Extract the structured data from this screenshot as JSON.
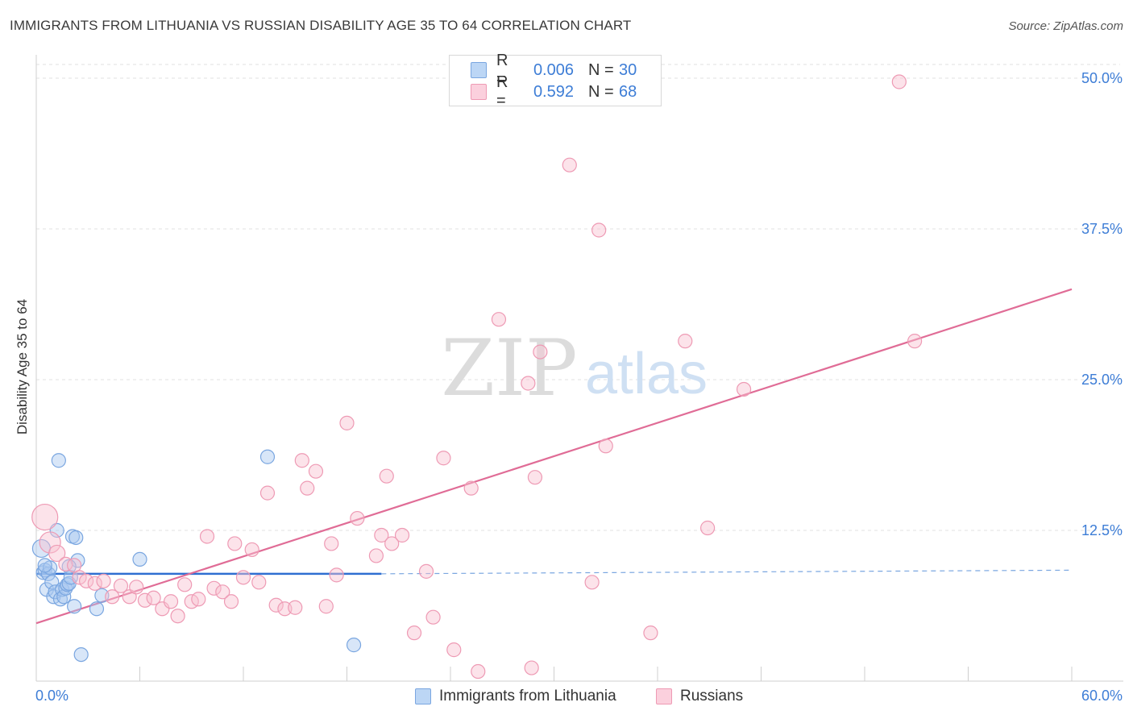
{
  "title": "IMMIGRANTS FROM LITHUANIA VS RUSSIAN DISABILITY AGE 35 TO 64 CORRELATION CHART",
  "source": "Source: ZipAtlas.com",
  "watermark": {
    "zip": "ZIP",
    "atlas": "atlas"
  },
  "legend": {
    "rows": [
      {
        "r_label": "R =",
        "r_value": "0.006",
        "n_label": "N =",
        "n_value": "30",
        "color": "#a8c8f0",
        "border": "#7aa6e0"
      },
      {
        "r_label": "R =",
        "r_value": "0.592",
        "n_label": "N =",
        "n_value": "68",
        "color": "#f8c0d0",
        "border": "#ee9ab4"
      }
    ]
  },
  "bottom_legend": [
    "Immigrants from Lithuania",
    "Russians"
  ],
  "chart_data": {
    "type": "scatter",
    "title": "IMMIGRANTS FROM LITHUANIA VS RUSSIAN DISABILITY AGE 35 TO 64 CORRELATION CHART",
    "xlabel": "",
    "ylabel": "Disability Age 35 to 64",
    "xlim": [
      0,
      60
    ],
    "ylim": [
      0,
      50
    ],
    "x_tick_labels": [
      "0.0%",
      "60.0%"
    ],
    "y_ticks": [
      12.5,
      25.0,
      37.5,
      50.0
    ],
    "y_tick_labels": [
      "12.5%",
      "25.0%",
      "37.5%",
      "50.0%"
    ],
    "grid": true,
    "legend_position": "top-center",
    "series": [
      {
        "name": "Immigrants from Lithuania",
        "color": "#7aa6e0",
        "fill": "rgba(168,200,240,0.45)",
        "line_color": "#2f6fd1",
        "trend": {
          "x0": 0,
          "y0": 8.9,
          "x1": 20,
          "y1": 8.9,
          "dashed_to": 60,
          "dashed_y": 9.2
        },
        "points": [
          [
            0.3,
            11.0
          ],
          [
            0.4,
            9.0
          ],
          [
            0.5,
            9.2
          ],
          [
            0.6,
            7.6
          ],
          [
            0.7,
            8.9
          ],
          [
            0.8,
            9.4
          ],
          [
            0.9,
            8.2
          ],
          [
            1.0,
            7.0
          ],
          [
            1.1,
            7.4
          ],
          [
            1.2,
            12.5
          ],
          [
            1.3,
            18.3
          ],
          [
            1.4,
            6.8
          ],
          [
            1.5,
            7.6
          ],
          [
            1.6,
            7.0
          ],
          [
            1.7,
            7.7
          ],
          [
            1.8,
            8.0
          ],
          [
            1.9,
            8.1
          ],
          [
            2.0,
            8.6
          ],
          [
            2.1,
            12.0
          ],
          [
            2.2,
            6.2
          ],
          [
            2.3,
            11.9
          ],
          [
            2.4,
            10.0
          ],
          [
            2.6,
            2.2
          ],
          [
            3.5,
            6.0
          ],
          [
            3.8,
            7.1
          ],
          [
            6.0,
            10.1
          ],
          [
            13.4,
            18.6
          ],
          [
            18.4,
            3.0
          ],
          [
            0.5,
            9.6
          ],
          [
            1.9,
            9.5
          ]
        ]
      },
      {
        "name": "Russians",
        "color": "#ee9ab4",
        "fill": "rgba(248,192,208,0.45)",
        "line_color": "#e06c96",
        "trend": {
          "x0": 0,
          "y0": 4.8,
          "x1": 60,
          "y1": 32.5
        },
        "points": [
          [
            0.5,
            13.6
          ],
          [
            0.8,
            11.5
          ],
          [
            1.2,
            10.6
          ],
          [
            1.7,
            9.7
          ],
          [
            2.2,
            9.6
          ],
          [
            2.5,
            8.6
          ],
          [
            2.9,
            8.3
          ],
          [
            3.4,
            8.1
          ],
          [
            3.9,
            8.3
          ],
          [
            4.4,
            7.0
          ],
          [
            4.9,
            7.9
          ],
          [
            5.4,
            7.0
          ],
          [
            5.8,
            7.8
          ],
          [
            6.3,
            6.7
          ],
          [
            6.8,
            6.9
          ],
          [
            7.3,
            6.0
          ],
          [
            7.8,
            6.6
          ],
          [
            8.2,
            5.4
          ],
          [
            8.6,
            8.0
          ],
          [
            9.0,
            6.6
          ],
          [
            9.4,
            6.8
          ],
          [
            9.9,
            12.0
          ],
          [
            10.3,
            7.7
          ],
          [
            10.8,
            7.4
          ],
          [
            11.3,
            6.6
          ],
          [
            11.5,
            11.4
          ],
          [
            12.0,
            8.6
          ],
          [
            12.5,
            10.9
          ],
          [
            12.9,
            8.2
          ],
          [
            13.4,
            15.6
          ],
          [
            13.9,
            6.3
          ],
          [
            14.4,
            6.0
          ],
          [
            15.0,
            6.1
          ],
          [
            15.4,
            18.3
          ],
          [
            15.7,
            16.0
          ],
          [
            16.2,
            17.4
          ],
          [
            16.8,
            6.2
          ],
          [
            17.1,
            11.4
          ],
          [
            17.4,
            8.8
          ],
          [
            18.0,
            21.4
          ],
          [
            18.6,
            13.5
          ],
          [
            19.7,
            10.4
          ],
          [
            20.0,
            12.1
          ],
          [
            20.3,
            17.0
          ],
          [
            20.6,
            11.4
          ],
          [
            21.2,
            12.1
          ],
          [
            21.9,
            4.0
          ],
          [
            22.6,
            9.1
          ],
          [
            23.0,
            5.3
          ],
          [
            23.6,
            18.5
          ],
          [
            24.2,
            2.6
          ],
          [
            25.2,
            16.0
          ],
          [
            25.6,
            0.8
          ],
          [
            26.8,
            30.0
          ],
          [
            28.5,
            24.7
          ],
          [
            28.7,
            1.1
          ],
          [
            28.9,
            16.9
          ],
          [
            29.2,
            27.3
          ],
          [
            30.9,
            42.8
          ],
          [
            32.2,
            8.2
          ],
          [
            32.6,
            37.4
          ],
          [
            33.0,
            19.5
          ],
          [
            35.6,
            4.0
          ],
          [
            37.6,
            28.2
          ],
          [
            38.9,
            12.7
          ],
          [
            41.0,
            24.2
          ],
          [
            50.9,
            28.2
          ],
          [
            50.0,
            49.7
          ]
        ]
      }
    ]
  }
}
